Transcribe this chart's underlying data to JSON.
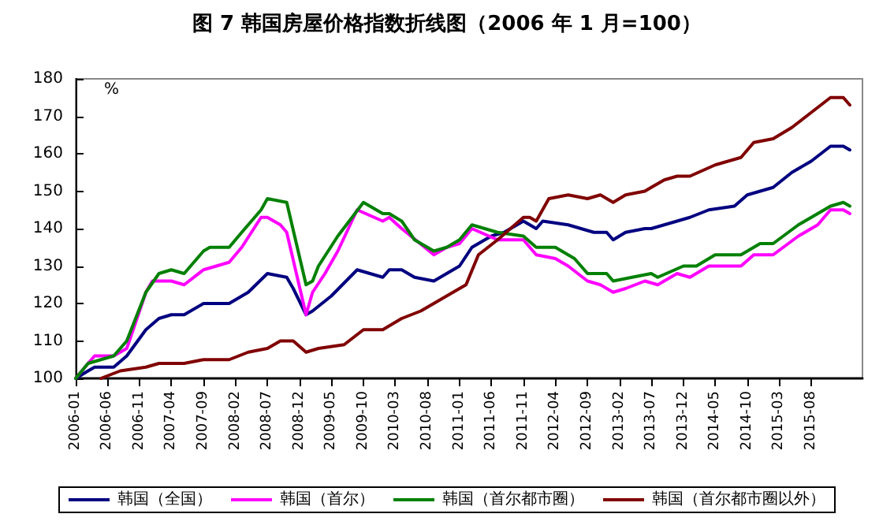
{
  "chart_data": {
    "type": "line",
    "title": "图 7 韩国房屋价格指数折线图（2006 年 1 月=100）",
    "ylabel": "%",
    "xlim": [
      "2006-01",
      "2016-04"
    ],
    "xticks": [
      "2006-01",
      "2006-06",
      "2006-11",
      "2007-04",
      "2007-09",
      "2008-02",
      "2008-07",
      "2008-12",
      "2009-05",
      "2009-10",
      "2010-03",
      "2010-08",
      "2011-01",
      "2011-06",
      "2011-11",
      "2012-04",
      "2012-09",
      "2013-02",
      "2013-07",
      "2013-12",
      "2014-05",
      "2014-10",
      "2015-03",
      "2015-08"
    ],
    "ylim": [
      100,
      180
    ],
    "yticks": [
      100,
      110,
      120,
      130,
      140,
      150,
      160,
      170,
      180
    ],
    "grid": false,
    "legend": "bottom",
    "marker": "none",
    "line_style": "solid",
    "series": [
      {
        "name": "韩国（全国）",
        "color": "#000080",
        "x": [
          "2006-01",
          "2006-03",
          "2006-04",
          "2006-07",
          "2006-09",
          "2006-12",
          "2007-02",
          "2007-04",
          "2007-06",
          "2007-09",
          "2007-11",
          "2008-01",
          "2008-04",
          "2008-07",
          "2008-10",
          "2008-11",
          "2009-01",
          "2009-02",
          "2009-05",
          "2009-09",
          "2010-01",
          "2010-02",
          "2010-04",
          "2010-06",
          "2010-09",
          "2010-11",
          "2011-01",
          "2011-03",
          "2011-06",
          "2011-08",
          "2011-11",
          "2012-01",
          "2012-02",
          "2012-06",
          "2012-10",
          "2012-12",
          "2013-01",
          "2013-03",
          "2013-06",
          "2013-07",
          "2013-11",
          "2014-01",
          "2014-04",
          "2014-08",
          "2014-10",
          "2015-02",
          "2015-05",
          "2015-08",
          "2015-11",
          "2016-01",
          "2016-02"
        ],
        "values": [
          100,
          102,
          103,
          103,
          106,
          113,
          116,
          117,
          117,
          120,
          120,
          120,
          123,
          128,
          127,
          124,
          117,
          118,
          122,
          129,
          127,
          129,
          129,
          127,
          126,
          128,
          130,
          135,
          138,
          139,
          142,
          140,
          142,
          141,
          139,
          139,
          137,
          139,
          140,
          140,
          142,
          143,
          145,
          146,
          149,
          151,
          155,
          158,
          162,
          162,
          161
        ]
      },
      {
        "name": "韩国（首尔）",
        "color": "#ff00ff",
        "x": [
          "2006-01",
          "2006-03",
          "2006-04",
          "2006-07",
          "2006-09",
          "2006-12",
          "2007-01",
          "2007-04",
          "2007-06",
          "2007-09",
          "2007-11",
          "2008-01",
          "2008-03",
          "2008-06",
          "2008-07",
          "2008-09",
          "2008-10",
          "2009-01",
          "2009-02",
          "2009-04",
          "2009-06",
          "2009-09",
          "2010-01",
          "2010-02",
          "2010-04",
          "2010-09",
          "2010-11",
          "2011-01",
          "2011-03",
          "2011-07",
          "2011-11",
          "2012-01",
          "2012-04",
          "2012-06",
          "2012-09",
          "2012-11",
          "2013-01",
          "2013-03",
          "2013-06",
          "2013-08",
          "2013-11",
          "2014-01",
          "2014-04",
          "2014-09",
          "2014-11",
          "2015-02",
          "2015-06",
          "2015-09",
          "2015-11",
          "2016-01",
          "2016-02"
        ],
        "values": [
          100,
          104,
          106,
          106,
          108,
          123,
          126,
          126,
          125,
          129,
          130,
          131,
          135,
          143,
          143,
          141,
          139,
          117,
          123,
          128,
          134,
          145,
          142,
          143,
          140,
          133,
          135,
          136,
          140,
          137,
          137,
          133,
          132,
          130,
          126,
          125,
          123,
          124,
          126,
          125,
          128,
          127,
          130,
          130,
          133,
          133,
          138,
          141,
          145,
          145,
          144
        ]
      },
      {
        "name": "韩国（首尔都市圈）",
        "color": "#008000",
        "x": [
          "2006-01",
          "2006-03",
          "2006-05",
          "2006-07",
          "2006-09",
          "2006-12",
          "2007-02",
          "2007-04",
          "2007-06",
          "2007-09",
          "2007-10",
          "2008-01",
          "2008-03",
          "2008-06",
          "2008-07",
          "2008-10",
          "2009-01",
          "2009-02",
          "2009-03",
          "2009-06",
          "2009-10",
          "2010-01",
          "2010-02",
          "2010-04",
          "2010-06",
          "2010-09",
          "2010-11",
          "2011-01",
          "2011-03",
          "2011-07",
          "2011-11",
          "2012-01",
          "2012-04",
          "2012-07",
          "2012-09",
          "2012-12",
          "2013-01",
          "2013-04",
          "2013-07",
          "2013-08",
          "2013-12",
          "2014-02",
          "2014-05",
          "2014-09",
          "2014-12",
          "2015-02",
          "2015-06",
          "2015-09",
          "2015-11",
          "2016-01",
          "2016-02"
        ],
        "values": [
          100,
          104,
          105,
          106,
          110,
          123,
          128,
          129,
          128,
          134,
          135,
          135,
          139,
          145,
          148,
          147,
          125,
          126,
          130,
          138,
          147,
          144,
          144,
          142,
          137,
          134,
          135,
          137,
          141,
          139,
          138,
          135,
          135,
          132,
          128,
          128,
          126,
          127,
          128,
          127,
          130,
          130,
          133,
          133,
          136,
          136,
          141,
          144,
          146,
          147,
          146
        ]
      },
      {
        "name": "韩国（首尔都市圈以外）",
        "color": "#800000",
        "x": [
          "2006-05",
          "2006-08",
          "2006-12",
          "2007-02",
          "2007-06",
          "2007-09",
          "2008-01",
          "2008-04",
          "2008-07",
          "2008-09",
          "2008-11",
          "2009-01",
          "2009-03",
          "2009-07",
          "2009-10",
          "2010-01",
          "2010-04",
          "2010-07",
          "2010-10",
          "2011-01",
          "2011-02",
          "2011-04",
          "2011-07",
          "2011-11",
          "2011-12",
          "2012-01",
          "2012-03",
          "2012-06",
          "2012-09",
          "2012-11",
          "2013-01",
          "2013-03",
          "2013-06",
          "2013-07",
          "2013-09",
          "2013-11",
          "2014-01",
          "2014-05",
          "2014-09",
          "2014-11",
          "2015-02",
          "2015-05",
          "2015-08",
          "2015-11",
          "2016-01",
          "2016-02"
        ],
        "values": [
          100,
          102,
          103,
          104,
          104,
          105,
          105,
          107,
          108,
          110,
          110,
          107,
          108,
          109,
          113,
          113,
          116,
          118,
          121,
          124,
          125,
          133,
          137,
          143,
          143,
          142,
          148,
          149,
          148,
          149,
          147,
          149,
          150,
          151,
          153,
          154,
          154,
          157,
          159,
          163,
          164,
          167,
          171,
          175,
          175,
          173
        ]
      }
    ]
  }
}
